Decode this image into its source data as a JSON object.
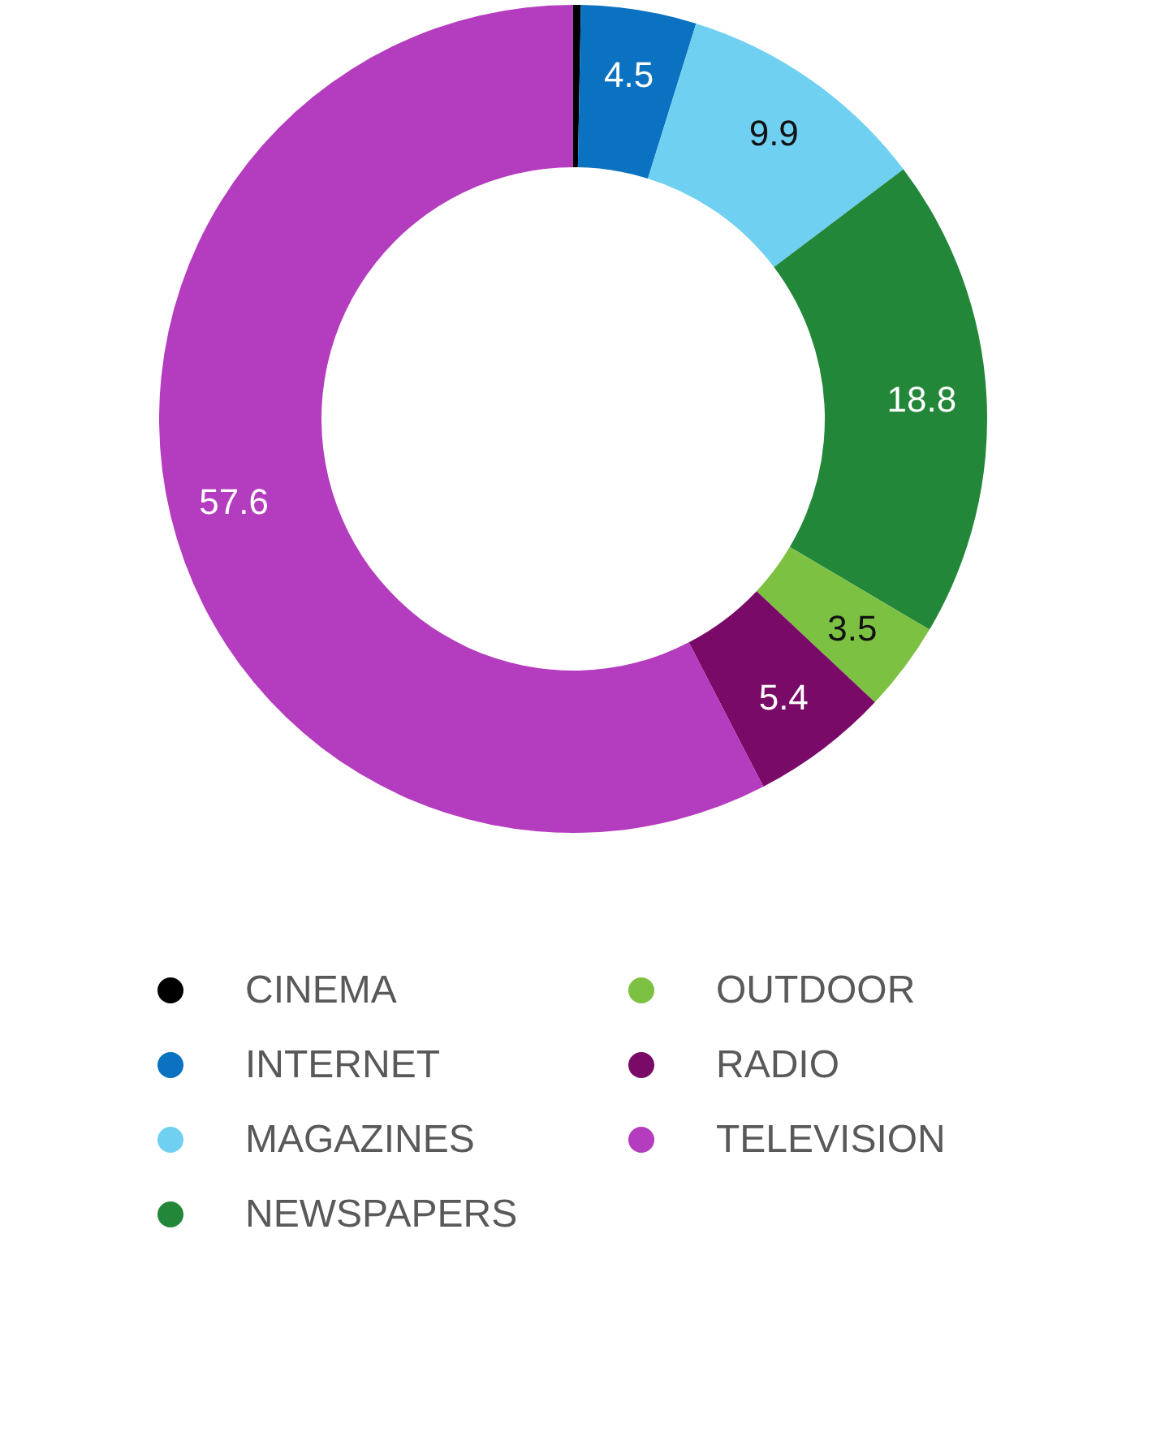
{
  "chart_data": {
    "type": "donut",
    "categories": [
      "CINEMA",
      "INTERNET",
      "MAGAZINES",
      "NEWSPAPERS",
      "OUTDOOR",
      "RADIO",
      "TELEVISION"
    ],
    "values": [
      0.3,
      4.5,
      9.9,
      18.8,
      3.5,
      5.4,
      57.6
    ],
    "value_labels": [
      null,
      "4.5",
      "9.9",
      "18.8",
      "3.5",
      "5.4",
      "57.6"
    ],
    "colors": [
      "#000000",
      "#0a72c0",
      "#6fd0f2",
      "#23873a",
      "#7cc142",
      "#7a0a68",
      "#b43cbe"
    ],
    "legend": "bottom"
  }
}
